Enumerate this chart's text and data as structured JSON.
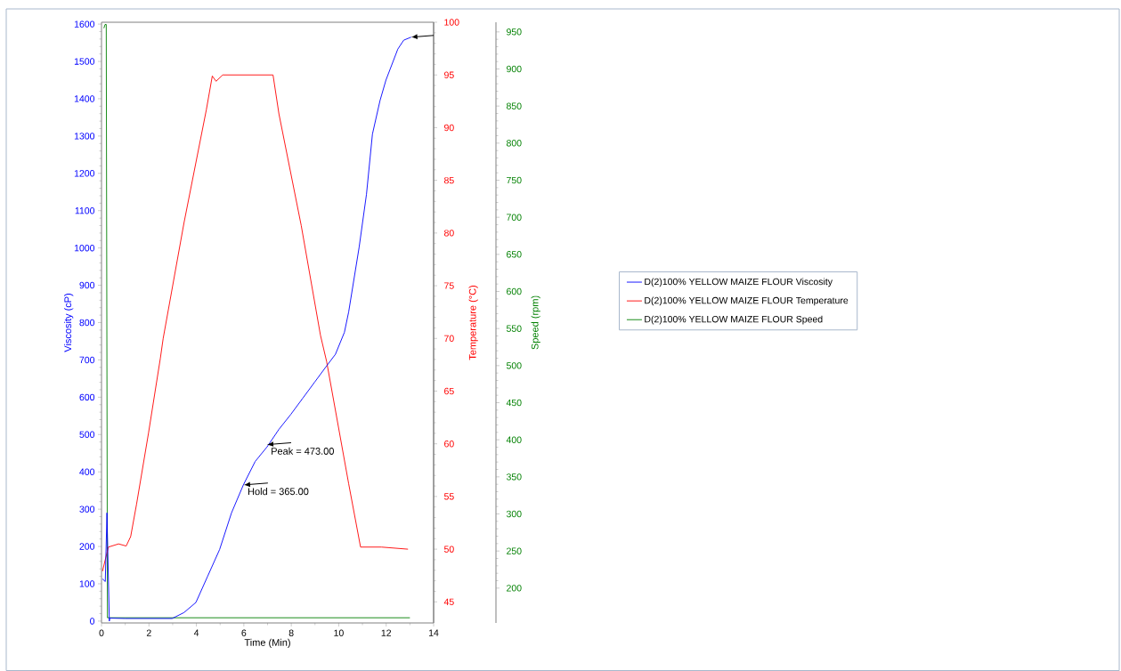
{
  "chart_data": {
    "type": "line",
    "xlabel": "Time  (Min)",
    "ylabel": "Viscosity (cP)",
    "y2label": "Temperature  (°C)",
    "y3label": "Speed  (rpm)",
    "xlim": [
      0,
      14
    ],
    "xticks": [
      0,
      2,
      4,
      6,
      8,
      10,
      12,
      14
    ],
    "ylim": [
      -5,
      1605
    ],
    "yticks": [
      0,
      100,
      200,
      300,
      400,
      500,
      600,
      700,
      800,
      900,
      1000,
      1100,
      1200,
      1300,
      1400,
      1500,
      1600
    ],
    "y2lim": [
      43,
      100
    ],
    "y2ticks": [
      45,
      50,
      55,
      60,
      65,
      70,
      75,
      80,
      85,
      90,
      95,
      100
    ],
    "y3lim": [
      153,
      963
    ],
    "y3ticks": [
      200,
      250,
      300,
      350,
      400,
      450,
      500,
      550,
      600,
      650,
      700,
      750,
      800,
      850,
      900,
      950
    ],
    "legend": "right",
    "series": [
      {
        "name": "D(2)100% YELLOW MAIZE FLOUR Viscosity",
        "color": "#0000ff",
        "axis": "y",
        "x": [
          0.04,
          0.16,
          0.23,
          0.33,
          0.35,
          1.0,
          2.0,
          2.98,
          3.48,
          3.98,
          4.48,
          4.98,
          5.48,
          5.98,
          6.48,
          6.98,
          7.48,
          7.98,
          8.48,
          8.98,
          9.49,
          9.86,
          10.24,
          10.42,
          10.86,
          11.17,
          11.42,
          11.74,
          11.99,
          12.49,
          12.74,
          13.05
        ],
        "values": [
          113,
          106,
          290,
          0,
          8,
          7,
          7,
          7,
          23,
          50,
          121,
          192,
          290,
          365,
          428,
          467,
          514,
          554,
          597,
          640,
          684,
          715,
          774,
          829,
          1002,
          1144,
          1305,
          1395,
          1450,
          1533,
          1557,
          1565
        ]
      },
      {
        "name": "D(2)100% YELLOW MAIZE FLOUR Temperature",
        "color": "#ff0000",
        "axis": "y2",
        "x": [
          0.04,
          0.29,
          0.72,
          1.04,
          1.23,
          1.48,
          1.98,
          2.48,
          2.6,
          3.48,
          4.42,
          4.67,
          4.83,
          5.11,
          7.23,
          7.48,
          8.42,
          9.23,
          9.49,
          10.42,
          10.92,
          11.8,
          12.92
        ],
        "values": [
          47.9,
          50.2,
          50.5,
          50.3,
          51.2,
          54.3,
          61.0,
          68.1,
          70.0,
          81.0,
          91.7,
          94.9,
          94.4,
          95,
          95,
          91.3,
          80.7,
          70.3,
          67.8,
          56.2,
          50.2,
          50.2,
          50.0
        ]
      },
      {
        "name": "D(2)100% YELLOW MAIZE FLOUR Speed",
        "color": "#008000",
        "axis": "y3",
        "x": [
          0.1,
          0.15,
          0.2,
          0.25,
          13.0
        ],
        "values": [
          955,
          960,
          960,
          160,
          160
        ]
      }
    ],
    "annotations": [
      {
        "text": "Peak = 473.00",
        "x": 6.98,
        "y": 473
      },
      {
        "text": "Hold = 365.00",
        "x": 6.0,
        "y": 365
      }
    ]
  }
}
